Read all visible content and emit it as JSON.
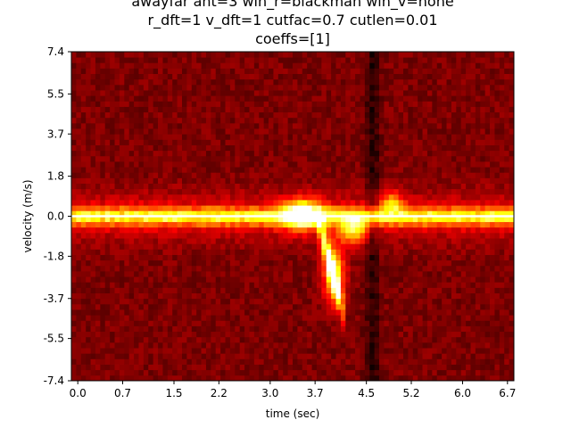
{
  "chart_data": {
    "type": "heatmap",
    "title_lines": [
      "awayfar ant=3 win_r=blackman win_v=none",
      "r_dft=1 v_dft=1 cutfac=0.7 cutlen=0.01",
      "coeffs=[1]"
    ],
    "xlabel": "time (sec)",
    "ylabel": "velocity (m/s)",
    "xlim": [
      -0.1,
      6.8
    ],
    "ylim": [
      -7.4,
      7.4
    ],
    "x_ticks": [
      0.0,
      0.7,
      1.5,
      2.2,
      3.0,
      3.7,
      4.5,
      5.2,
      6.0,
      6.7
    ],
    "x_tick_labels": [
      "0.0",
      "0.7",
      "1.5",
      "2.2",
      "3.0",
      "3.7",
      "4.5",
      "5.2",
      "6.0",
      "6.7"
    ],
    "y_ticks": [
      7.4,
      5.5,
      3.7,
      1.8,
      0.0,
      -1.8,
      -3.7,
      -5.5,
      -7.4
    ],
    "y_tick_labels": [
      "7.4",
      "5.5",
      "3.7",
      "1.8",
      "0.0",
      "-1.8",
      "-3.7",
      "-5.5",
      "-7.4"
    ],
    "colormap": "hot",
    "grid": false,
    "zero_velocity_line": {
      "y": 0.0,
      "color": "#ffffff"
    },
    "intensity_features": [
      {
        "x": [
          -0.1,
          6.8
        ],
        "y": 0.0,
        "kind": "band",
        "strength": 0.75
      },
      {
        "x": [
          3.3,
          3.7
        ],
        "y": [
          -0.4,
          0.6
        ],
        "kind": "blob",
        "strength": 1.0
      },
      {
        "x": [
          3.8,
          4.1
        ],
        "y": [
          -3.4,
          -0.3
        ],
        "kind": "streak",
        "strength": 1.0
      },
      {
        "x": [
          4.1,
          4.5
        ],
        "y": [
          -1.2,
          -0.1
        ],
        "kind": "blob",
        "strength": 0.8
      },
      {
        "x": [
          4.8,
          5.1
        ],
        "y": [
          0.2,
          1.0
        ],
        "kind": "blob",
        "strength": 0.55
      }
    ]
  }
}
